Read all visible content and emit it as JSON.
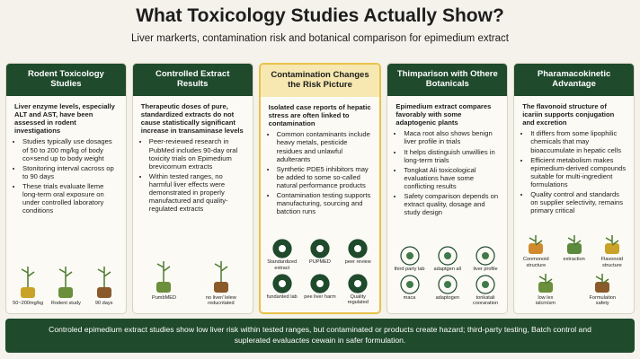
{
  "header": {
    "title": "What Toxicology Studies Actually Show?",
    "subtitle": "Liver markerts, contamination risk and botanical comparison for epimedium extract"
  },
  "columns": [
    {
      "heading": "Rodent Toxicology Studies",
      "intro": "Liver enzyme levels, especially ALT and AST, have been assessed in rodent investigations",
      "bullets": [
        "Studies typically use dosages of 50 to 200 mg/kg of body co×send up to body weight",
        "Stonitoring interval cacross op to 90 days",
        "These trials evaluate lleme long-term oral exposure on under controlled laboratory conditions"
      ],
      "icons": [
        "50~200mg/kg",
        "Rodent study",
        "90 days"
      ]
    },
    {
      "heading": "Controlled Extract Results",
      "intro": "Therapeutic doses of pure, standardized extracts do not cause statistically significant increase in transaminase levels",
      "bullets": [
        "Peer-reviewed research in PubMed includes 90-day oral toxicity trials on Epimedium brevicornum extracts",
        "Within tested ranges, no harmful liver effects were demonstrated in properly manufactured and quality-regulated extracts"
      ],
      "icons": [
        "PumbMED",
        "no liver/ lelew reducntated"
      ]
    },
    {
      "heading": "Contamination Changes the Risk Picture",
      "intro": "Isolated case reports of hepatic stress are often linked to contamination",
      "bullets": [
        "Common contaminants include heavy metals, pesticide residues and unlawful adulterants",
        "Synthetic PDE5 inhibitors may be added to some so-called natural performance products",
        "Contamination testing supports manufacturing, sourcing and batction runs"
      ],
      "icons": [
        "Standardized extract",
        "PUPMED",
        "peer review",
        "fundanted lab",
        "pee liver harm",
        "Quality regulated"
      ]
    },
    {
      "heading": "Thimparison with Othere Botanicals",
      "intro": "Epimedium extract compares favorably with some adaptogenic plants",
      "bullets": [
        "Maca root also shows benign liver profile in trials",
        "It helps distinguish unwillies in long-term trials",
        "Tongkat Ali toxicological evaluations have some conflicting results",
        "Safety comparison depends on extract quality, dosage and study design"
      ],
      "icons": [
        "third party lab",
        "adaptgen all",
        "liver profile",
        "maca",
        "adaptogen",
        "tonkatali cooraration"
      ]
    },
    {
      "heading": "Pharamacokinetic Advantage",
      "intro": "The flavonoid structure of icariin supports conjugation and excretion",
      "bullets": [
        "It differs from some lipophilic chemicals that may bioaccumulate in hepatic cells",
        "Efficient metabolism makes epimedium-derived compounds suitable for multi-ingredient formulations",
        "Quality control and standards on supplier selectivity, remains primary critical"
      ],
      "icons": [
        "Conmonoid structure",
        "extraction",
        "Flavonoid structure",
        "low lex ialcrnism",
        "Formulation safety"
      ]
    }
  ],
  "footer": "Controled epimedium extract studies show low liver risk within tested ranges, but contaminated or products create hazard; third-party testing, Batch control and suplerated evaluactes cewain in safer formulation."
}
